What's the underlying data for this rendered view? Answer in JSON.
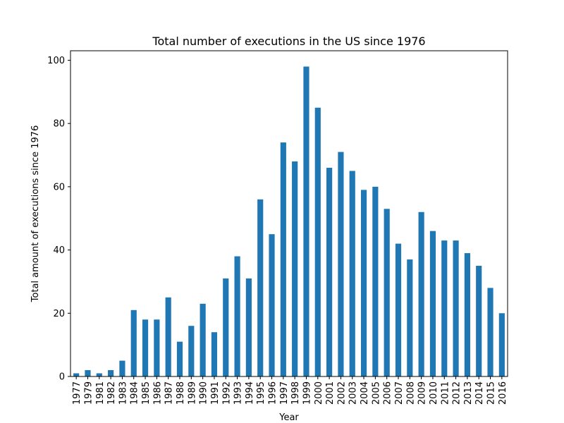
{
  "chart_data": {
    "type": "bar",
    "title": "Total number of executions in the US since 1976",
    "xlabel": "Year",
    "ylabel": "Total amount of executions since 1976",
    "categories": [
      "1977",
      "1979",
      "1981",
      "1982",
      "1983",
      "1984",
      "1985",
      "1986",
      "1987",
      "1988",
      "1989",
      "1990",
      "1991",
      "1992",
      "1993",
      "1994",
      "1995",
      "1996",
      "1997",
      "1998",
      "1999",
      "2000",
      "2001",
      "2002",
      "2003",
      "2004",
      "2005",
      "2006",
      "2007",
      "2008",
      "2009",
      "2010",
      "2011",
      "2012",
      "2013",
      "2014",
      "2015",
      "2016"
    ],
    "values": [
      1,
      2,
      1,
      2,
      5,
      21,
      18,
      18,
      25,
      11,
      16,
      23,
      14,
      31,
      38,
      31,
      56,
      45,
      74,
      68,
      98,
      85,
      66,
      71,
      65,
      59,
      60,
      53,
      42,
      37,
      52,
      46,
      43,
      43,
      39,
      35,
      28,
      20
    ],
    "ylim": [
      0,
      103
    ],
    "yticks": [
      0,
      20,
      40,
      60,
      80,
      100
    ],
    "bar_color": "#1f77b4",
    "grid": false,
    "legend": "none"
  }
}
